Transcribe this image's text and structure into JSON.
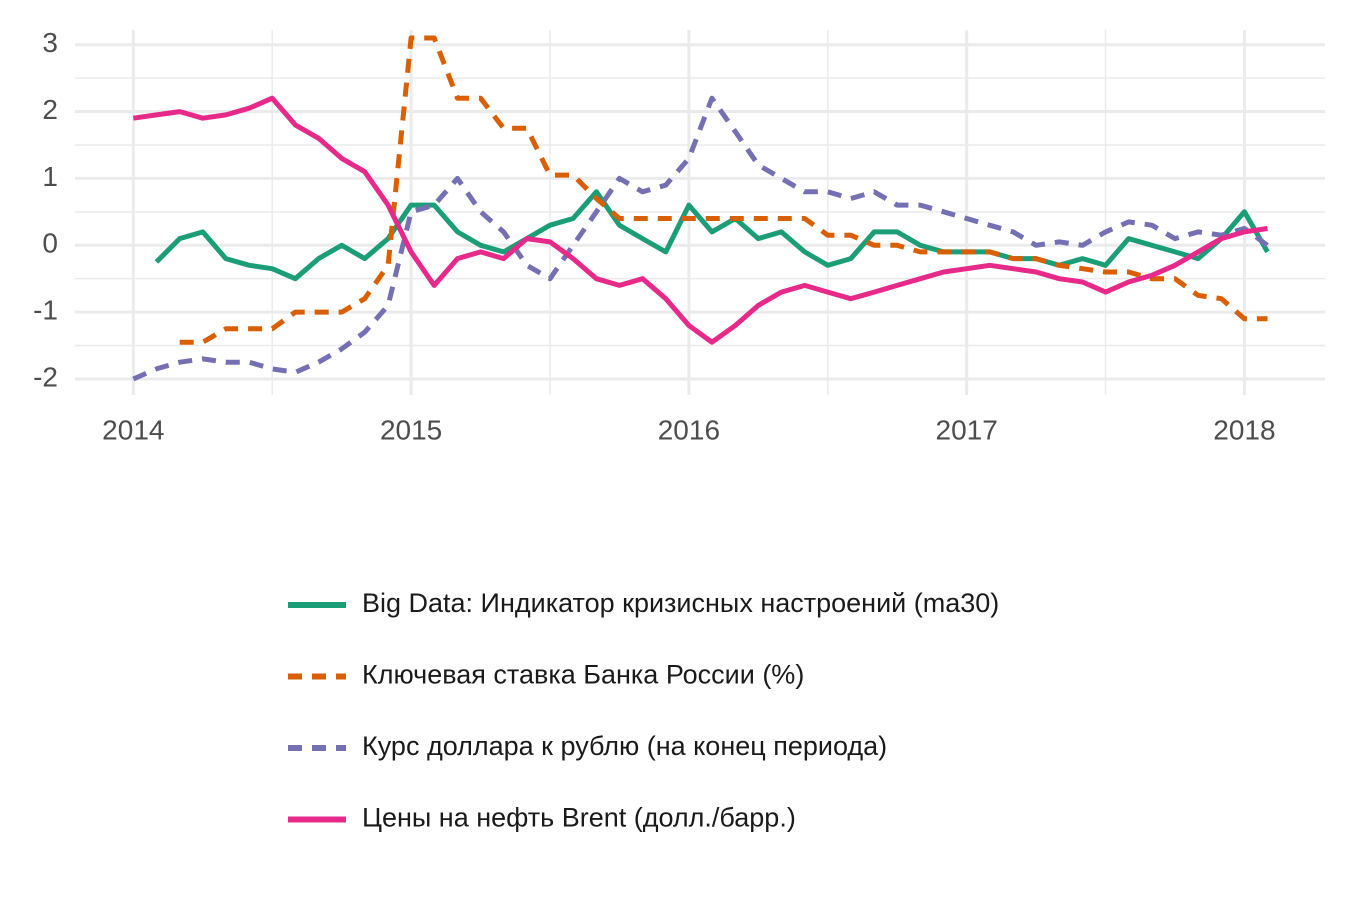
{
  "chart_data": {
    "type": "line",
    "x": [
      2014,
      2014.083,
      2014.167,
      2014.25,
      2014.333,
      2014.417,
      2014.5,
      2014.583,
      2014.667,
      2014.75,
      2014.833,
      2014.917,
      2015,
      2015.083,
      2015.167,
      2015.25,
      2015.333,
      2015.417,
      2015.5,
      2015.583,
      2015.667,
      2015.75,
      2015.833,
      2015.917,
      2016,
      2016.083,
      2016.167,
      2016.25,
      2016.333,
      2016.417,
      2016.5,
      2016.583,
      2016.667,
      2016.75,
      2016.833,
      2016.917,
      2017,
      2017.083,
      2017.167,
      2017.25,
      2017.333,
      2017.417,
      2017.5,
      2017.583,
      2017.667,
      2017.75,
      2017.833,
      2017.917,
      2018,
      2018.083
    ],
    "series": [
      {
        "name": "Big Data: Индикатор кризисных настроений (ma30)",
        "color": "#1b9e77",
        "linestyle": "solid",
        "values": [
          null,
          -0.25,
          0.1,
          0.2,
          -0.2,
          -0.3,
          -0.35,
          -0.5,
          -0.2,
          0,
          -0.2,
          0.1,
          0.6,
          0.6,
          0.2,
          0,
          -0.1,
          0.1,
          0.3,
          0.4,
          0.8,
          0.3,
          0.1,
          -0.1,
          0.6,
          0.2,
          0.4,
          0.1,
          0.2,
          -0.1,
          -0.3,
          -0.2,
          0.2,
          0.2,
          0,
          -0.1,
          -0.1,
          -0.1,
          -0.2,
          -0.2,
          -0.3,
          -0.2,
          -0.3,
          0.1,
          0,
          -0.1,
          -0.2,
          0.1,
          0.5,
          -0.1
        ]
      },
      {
        "name": "Ключевая ставка Банка России (%)",
        "color": "#d95f02",
        "linestyle": "dashed",
        "values": [
          null,
          null,
          -1.45,
          -1.45,
          -1.25,
          -1.25,
          -1.25,
          -1.0,
          -1.0,
          -1.0,
          -0.8,
          -0.3,
          3.1,
          3.1,
          2.2,
          2.2,
          1.75,
          1.75,
          1.05,
          1.05,
          0.7,
          0.4,
          0.4,
          0.4,
          0.4,
          0.4,
          0.4,
          0.4,
          0.4,
          0.4,
          0.15,
          0.15,
          0,
          0,
          -0.1,
          -0.1,
          -0.1,
          -0.1,
          -0.2,
          -0.2,
          -0.3,
          -0.35,
          -0.4,
          -0.4,
          -0.5,
          -0.5,
          -0.75,
          -0.8,
          -1.1,
          -1.1
        ]
      },
      {
        "name": "Курс доллара к рублю (на конец периода)",
        "color": "#7570b3",
        "linestyle": "dashed",
        "values": [
          -2.0,
          -1.85,
          -1.75,
          -1.7,
          -1.75,
          -1.75,
          -1.85,
          -1.9,
          -1.75,
          -1.55,
          -1.3,
          -0.9,
          0.5,
          0.6,
          1.0,
          0.5,
          0.2,
          -0.3,
          -0.5,
          0,
          0.5,
          1.0,
          0.8,
          0.9,
          1.3,
          2.2,
          1.7,
          1.2,
          1.0,
          0.8,
          0.8,
          0.7,
          0.8,
          0.6,
          0.6,
          0.5,
          0.4,
          0.3,
          0.2,
          0,
          0.05,
          0,
          0.2,
          0.35,
          0.3,
          0.1,
          0.2,
          0.15,
          0.25,
          0
        ]
      },
      {
        "name": "Цены на нефть Brent (долл./барр.)",
        "color": "#e7298a",
        "linestyle": "solid",
        "values": [
          1.9,
          1.95,
          2.0,
          1.9,
          1.95,
          2.05,
          2.2,
          1.8,
          1.6,
          1.3,
          1.1,
          0.6,
          -0.1,
          -0.6,
          -0.2,
          -0.1,
          -0.2,
          0.1,
          0.05,
          -0.2,
          -0.5,
          -0.6,
          -0.5,
          -0.8,
          -1.2,
          -1.45,
          -1.2,
          -0.9,
          -0.7,
          -0.6,
          -0.7,
          -0.8,
          -0.7,
          -0.6,
          -0.5,
          -0.4,
          -0.35,
          -0.3,
          -0.35,
          -0.4,
          -0.5,
          -0.55,
          -0.7,
          -0.55,
          -0.45,
          -0.3,
          -0.1,
          0.1,
          0.2,
          0.25
        ]
      }
    ],
    "xlim": [
      2013.79,
      2018.29
    ],
    "xticks": [
      2014,
      2015,
      2016,
      2017,
      2018
    ],
    "xminorticks": [
      2014.5,
      2015.5,
      2016.5,
      2017.5
    ],
    "ylim": [
      -2.24,
      3.22
    ],
    "yticks": [
      -2,
      -1,
      0,
      1,
      2,
      3
    ],
    "yminorticks": [
      -1.5,
      -0.5,
      0.5,
      1.5,
      2.5
    ],
    "grid": true,
    "legend": "bottom"
  }
}
